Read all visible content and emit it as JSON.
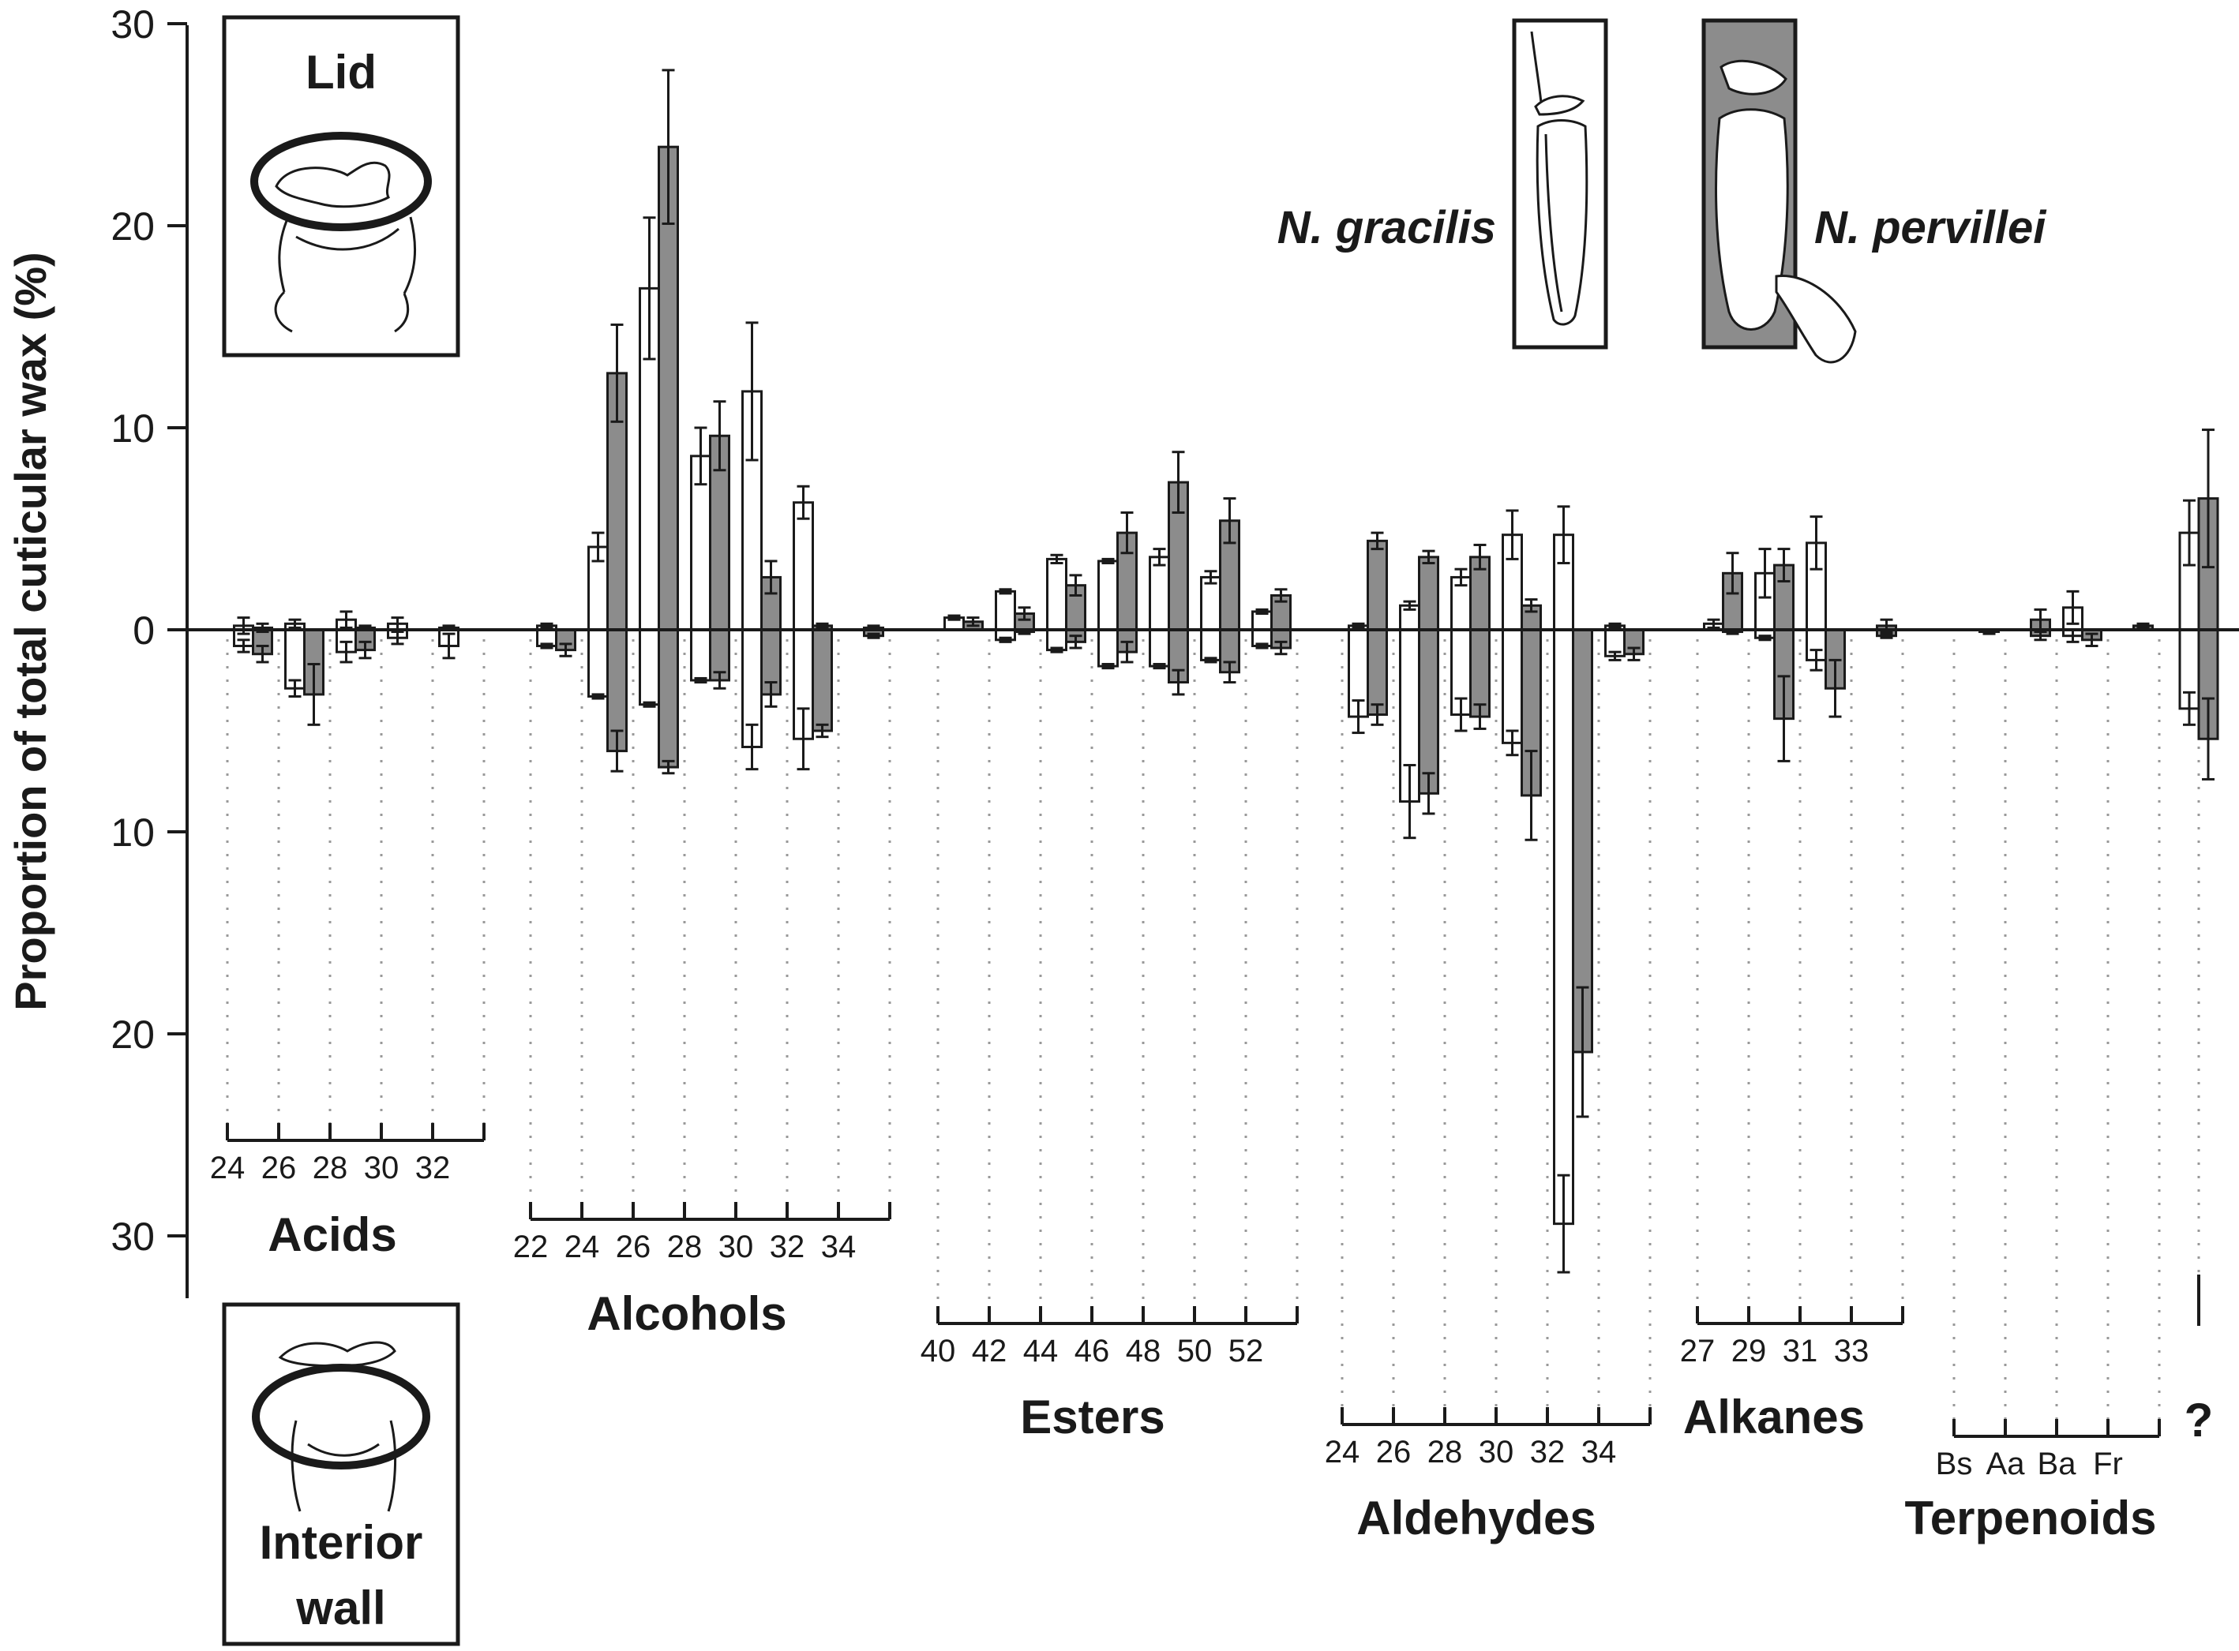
{
  "chart_data": {
    "type": "bar",
    "ylabel": "Proportion of total cuticular wax (%)",
    "y_axis": {
      "upper_ticks": [
        "30",
        "20",
        "10",
        "0"
      ],
      "lower_ticks": [
        "10",
        "20",
        "30"
      ],
      "upper_range": [
        0,
        30
      ],
      "lower_range": [
        0,
        30
      ]
    },
    "legend": {
      "species": [
        {
          "name": "N. gracilis",
          "color": "#ffffff"
        },
        {
          "name": "N. pervillei",
          "color": "#8c8c8c"
        }
      ],
      "upper_region": "Lid",
      "lower_region_line1": "Interior",
      "lower_region_line2": "wall"
    },
    "series_colors": {
      "N. gracilis": "#ffffff",
      "N. pervillei": "#8c8c8c"
    },
    "groups": [
      {
        "name": "Acids",
        "labels": [
          "24",
          "26",
          "28",
          "30",
          "32"
        ],
        "compounds": [
          {
            "label": "24",
            "lid": [
              0.2,
              0.1
            ],
            "lid_err": [
              0.4,
              0.2
            ],
            "wall": [
              0.8,
              1.2
            ],
            "wall_err": [
              0.3,
              0.4
            ]
          },
          {
            "label": "26",
            "lid": [
              0.3,
              0.0
            ],
            "lid_err": [
              0.2,
              0.0
            ],
            "wall": [
              2.9,
              3.2
            ],
            "wall_err": [
              0.4,
              1.5
            ]
          },
          {
            "label": "28",
            "lid": [
              0.5,
              0.1
            ],
            "lid_err": [
              0.4,
              0.1
            ],
            "wall": [
              1.1,
              1.0
            ],
            "wall_err": [
              0.5,
              0.4
            ]
          },
          {
            "label": "30",
            "lid": [
              0.3,
              0.0
            ],
            "lid_err": [
              0.3,
              0.0
            ],
            "wall": [
              0.4,
              0.0
            ],
            "wall_err": [
              0.3,
              0.0
            ]
          },
          {
            "label": "32",
            "lid": [
              0.1,
              0.0
            ],
            "lid_err": [
              0.1,
              0.0
            ],
            "wall": [
              0.8,
              0.0
            ],
            "wall_err": [
              0.6,
              0.0
            ]
          }
        ]
      },
      {
        "name": "Alcohols",
        "labels": [
          "22",
          "24",
          "26",
          "28",
          "30",
          "32",
          "34"
        ],
        "compounds": [
          {
            "label": "22",
            "lid": [
              0.2,
              0.0
            ],
            "lid_err": [
              0.1,
              0.0
            ],
            "wall": [
              0.8,
              1.0
            ],
            "wall_err": [
              0.1,
              0.3
            ]
          },
          {
            "label": "24",
            "lid": [
              4.1,
              12.7
            ],
            "lid_err": [
              0.7,
              2.4
            ],
            "wall": [
              3.3,
              6.0
            ],
            "wall_err": [
              0.1,
              1.0
            ]
          },
          {
            "label": "26",
            "lid": [
              16.9,
              23.9
            ],
            "lid_err": [
              3.5,
              3.8
            ],
            "wall": [
              3.7,
              6.8
            ],
            "wall_err": [
              0.1,
              0.3
            ]
          },
          {
            "label": "28",
            "lid": [
              8.6,
              9.6
            ],
            "lid_err": [
              1.4,
              1.7
            ],
            "wall": [
              2.5,
              2.5
            ],
            "wall_err": [
              0.1,
              0.4
            ]
          },
          {
            "label": "30",
            "lid": [
              11.8,
              2.6
            ],
            "lid_err": [
              3.4,
              0.8
            ],
            "wall": [
              5.8,
              3.2
            ],
            "wall_err": [
              1.1,
              0.6
            ]
          },
          {
            "label": "32",
            "lid": [
              6.3,
              0.2
            ],
            "lid_err": [
              0.8,
              0.1
            ],
            "wall": [
              5.4,
              5.0
            ],
            "wall_err": [
              1.5,
              0.3
            ]
          },
          {
            "label": "34",
            "lid": [
              0.0,
              0.1
            ],
            "lid_err": [
              0.0,
              0.1
            ],
            "wall": [
              0.0,
              0.3
            ],
            "wall_err": [
              0.0,
              0.1
            ]
          }
        ]
      },
      {
        "name": "Esters",
        "labels": [
          "40",
          "42",
          "44",
          "46",
          "48",
          "50",
          "52"
        ],
        "compounds": [
          {
            "label": "40",
            "lid": [
              0.6,
              0.4
            ],
            "lid_err": [
              0.1,
              0.2
            ],
            "wall": [
              0.0,
              0.0
            ],
            "wall_err": [
              0.0,
              0.0
            ]
          },
          {
            "label": "42",
            "lid": [
              1.9,
              0.8
            ],
            "lid_err": [
              0.1,
              0.3
            ],
            "wall": [
              0.5,
              0.1
            ],
            "wall_err": [
              0.1,
              0.1
            ]
          },
          {
            "label": "44",
            "lid": [
              3.5,
              2.2
            ],
            "lid_err": [
              0.2,
              0.5
            ],
            "wall": [
              1.0,
              0.6
            ],
            "wall_err": [
              0.1,
              0.3
            ]
          },
          {
            "label": "46",
            "lid": [
              3.4,
              4.8
            ],
            "lid_err": [
              0.1,
              1.0
            ],
            "wall": [
              1.8,
              1.1
            ],
            "wall_err": [
              0.1,
              0.5
            ]
          },
          {
            "label": "48",
            "lid": [
              3.6,
              7.3
            ],
            "lid_err": [
              0.4,
              1.5
            ],
            "wall": [
              1.8,
              2.6
            ],
            "wall_err": [
              0.1,
              0.6
            ]
          },
          {
            "label": "50",
            "lid": [
              2.6,
              5.4
            ],
            "lid_err": [
              0.3,
              1.1
            ],
            "wall": [
              1.5,
              2.1
            ],
            "wall_err": [
              0.1,
              0.5
            ]
          },
          {
            "label": "52",
            "lid": [
              0.9,
              1.7
            ],
            "lid_err": [
              0.1,
              0.3
            ],
            "wall": [
              0.8,
              0.9
            ],
            "wall_err": [
              0.1,
              0.3
            ]
          }
        ]
      },
      {
        "name": "Aldehydes",
        "labels": [
          "24",
          "26",
          "28",
          "30",
          "32",
          "34"
        ],
        "compounds": [
          {
            "label": "24",
            "lid": [
              0.2,
              4.4
            ],
            "lid_err": [
              0.1,
              0.4
            ],
            "wall": [
              4.3,
              4.2
            ],
            "wall_err": [
              0.8,
              0.5
            ]
          },
          {
            "label": "26",
            "lid": [
              1.2,
              3.6
            ],
            "lid_err": [
              0.2,
              0.3
            ],
            "wall": [
              8.5,
              8.1
            ],
            "wall_err": [
              1.8,
              1.0
            ]
          },
          {
            "label": "28",
            "lid": [
              2.6,
              3.6
            ],
            "lid_err": [
              0.4,
              0.6
            ],
            "wall": [
              4.2,
              4.3
            ],
            "wall_err": [
              0.8,
              0.6
            ]
          },
          {
            "label": "30",
            "lid": [
              4.7,
              1.2
            ],
            "lid_err": [
              1.2,
              0.3
            ],
            "wall": [
              5.6,
              8.2
            ],
            "wall_err": [
              0.6,
              2.2
            ]
          },
          {
            "label": "32",
            "lid": [
              4.7,
              0.0
            ],
            "lid_err": [
              1.4,
              0.0
            ],
            "wall": [
              29.4,
              20.9
            ],
            "wall_err": [
              2.4,
              3.2
            ]
          },
          {
            "label": "34",
            "lid": [
              0.2,
              0.0
            ],
            "lid_err": [
              0.1,
              0.0
            ],
            "wall": [
              1.3,
              1.2
            ],
            "wall_err": [
              0.2,
              0.3
            ]
          }
        ]
      },
      {
        "name": "Alkanes",
        "labels": [
          "27",
          "29",
          "31",
          "33"
        ],
        "compounds": [
          {
            "label": "27",
            "lid": [
              0.3,
              2.8
            ],
            "lid_err": [
              0.2,
              1.0
            ],
            "wall": [
              0.0,
              0.1
            ],
            "wall_err": [
              0.0,
              0.1
            ]
          },
          {
            "label": "29",
            "lid": [
              2.8,
              3.2
            ],
            "lid_err": [
              1.2,
              0.8
            ],
            "wall": [
              0.4,
              4.4
            ],
            "wall_err": [
              0.1,
              2.1
            ]
          },
          {
            "label": "31",
            "lid": [
              4.3,
              0.0
            ],
            "lid_err": [
              1.3,
              0.0
            ],
            "wall": [
              1.5,
              2.9
            ],
            "wall_err": [
              0.5,
              1.4
            ]
          },
          {
            "label": "33",
            "lid": [
              0.0,
              0.2
            ],
            "lid_err": [
              0.0,
              0.3
            ],
            "wall": [
              0.0,
              0.3
            ],
            "wall_err": [
              0.0,
              0.1
            ]
          }
        ]
      },
      {
        "name": "Terpenoids",
        "labels": [
          "Bs",
          "Aa",
          "Ba",
          "Fr"
        ],
        "compounds": [
          {
            "label": "Bs",
            "lid": [
              0.0,
              0.0
            ],
            "lid_err": [
              0.0,
              0.0
            ],
            "wall": [
              0.0,
              0.1
            ],
            "wall_err": [
              0.0,
              0.1
            ]
          },
          {
            "label": "Aa",
            "lid": [
              0.0,
              0.5
            ],
            "lid_err": [
              0.0,
              0.5
            ],
            "wall": [
              0.0,
              0.3
            ],
            "wall_err": [
              0.0,
              0.2
            ]
          },
          {
            "label": "Ba",
            "lid": [
              1.1,
              0.0
            ],
            "lid_err": [
              0.8,
              0.0
            ],
            "wall": [
              0.3,
              0.5
            ],
            "wall_err": [
              0.3,
              0.3
            ]
          },
          {
            "label": "Fr",
            "lid": [
              0.0,
              0.2
            ],
            "lid_err": [
              0.0,
              0.1
            ],
            "wall": [
              0.0,
              0.0
            ],
            "wall_err": [
              0.0,
              0.0
            ]
          }
        ]
      },
      {
        "name": "?",
        "labels": [
          ""
        ],
        "compounds": [
          {
            "label": "",
            "lid": [
              4.8,
              6.5
            ],
            "lid_err": [
              1.6,
              3.4
            ],
            "wall": [
              3.9,
              5.4
            ],
            "wall_err": [
              0.8,
              2.0
            ]
          }
        ]
      }
    ]
  }
}
